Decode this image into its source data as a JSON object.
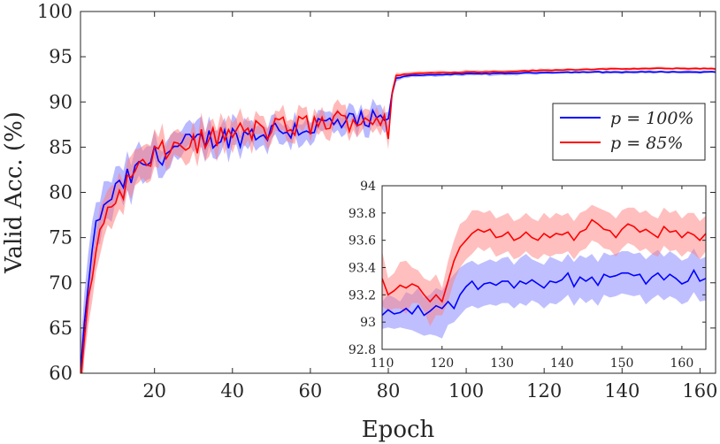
{
  "chart_data": [
    {
      "type": "line",
      "panel": "main",
      "xlabel": "Epoch",
      "ylabel": "Valid Acc. (%)",
      "xlim": [
        1,
        164
      ],
      "ylim": [
        60,
        100
      ],
      "xticks": [
        20,
        40,
        60,
        80,
        100,
        120,
        140,
        160
      ],
      "yticks": [
        60,
        65,
        70,
        75,
        80,
        85,
        90,
        95,
        100
      ],
      "grid": false,
      "legend_position": "right",
      "x_breakpoints": [
        1,
        3,
        5,
        8,
        12,
        16,
        20,
        25,
        30,
        35,
        40,
        45,
        50,
        55,
        60,
        65,
        70,
        75,
        79,
        80,
        81,
        82,
        85,
        90,
        100,
        110,
        120,
        130,
        140,
        150,
        160,
        164
      ],
      "series": [
        {
          "name": "p = 100%",
          "legend_label": "p = 100%",
          "color": "#0000ff",
          "band_color": "#8080ff",
          "mean": [
            60,
            70,
            76.5,
            79,
            81,
            82.5,
            84,
            84.8,
            85.5,
            86,
            86.2,
            86.5,
            86.8,
            87,
            87.2,
            87.5,
            87.6,
            87.8,
            87.8,
            87.5,
            91,
            92.6,
            92.9,
            93.0,
            93.1,
            93.15,
            93.25,
            93.3,
            93.3,
            93.33,
            93.3,
            93.3
          ],
          "band": [
            3,
            3,
            2.5,
            2,
            2,
            2,
            1.8,
            1.5,
            1.5,
            1.5,
            1.4,
            1.3,
            1.2,
            1.2,
            1.1,
            1.1,
            1.1,
            1.1,
            1.1,
            1.1,
            0.5,
            0.3,
            0.2,
            0.2,
            0.2,
            0.2,
            0.15,
            0.15,
            0.15,
            0.15,
            0.15,
            0.15
          ]
        },
        {
          "name": "p = 85%",
          "legend_label": "p = 85%",
          "color": "#ff0000",
          "band_color": "#ff8080",
          "mean": [
            59,
            68,
            74,
            78,
            80.5,
            82.5,
            84,
            85,
            85.5,
            86,
            86.5,
            86.8,
            87,
            87.3,
            87.5,
            87.8,
            88,
            88.2,
            88.3,
            86.5,
            91,
            92.9,
            93.1,
            93.2,
            93.3,
            93.35,
            93.5,
            93.6,
            93.65,
            93.7,
            93.7,
            93.65
          ],
          "band": [
            3,
            3,
            2.5,
            2,
            2,
            2,
            1.8,
            1.5,
            1.5,
            1.5,
            1.4,
            1.3,
            1.2,
            1.2,
            1.1,
            1.1,
            1.1,
            1.1,
            1.1,
            1.1,
            0.5,
            0.3,
            0.2,
            0.2,
            0.2,
            0.2,
            0.15,
            0.15,
            0.15,
            0.15,
            0.15,
            0.15
          ]
        }
      ]
    },
    {
      "type": "line",
      "panel": "inset",
      "xlim": [
        110,
        164
      ],
      "ylim": [
        92.8,
        94
      ],
      "xticks": [
        110,
        120,
        130,
        140,
        150,
        160
      ],
      "yticks": [
        92.8,
        93,
        93.2,
        93.4,
        93.6,
        93.8,
        94
      ],
      "grid": false,
      "series": [
        {
          "name": "p = 100%",
          "color": "#0000ff",
          "band_color": "#8080ff",
          "x": [
            110,
            111,
            112,
            113,
            114,
            115,
            116,
            117,
            118,
            119,
            120,
            121,
            122,
            123,
            124,
            125,
            126,
            127,
            128,
            129,
            130,
            131,
            132,
            133,
            134,
            135,
            136,
            137,
            138,
            139,
            140,
            141,
            142,
            143,
            144,
            145,
            146,
            147,
            148,
            149,
            150,
            151,
            152,
            153,
            154,
            155,
            156,
            157,
            158,
            159,
            160,
            161,
            162,
            163,
            164
          ],
          "mean": [
            93.05,
            93.09,
            93.06,
            93.07,
            93.1,
            93.06,
            93.12,
            93.05,
            93.08,
            93.12,
            93.1,
            93.15,
            93.1,
            93.2,
            93.26,
            93.3,
            93.24,
            93.28,
            93.29,
            93.27,
            93.3,
            93.3,
            93.25,
            93.3,
            93.28,
            93.31,
            93.28,
            93.25,
            93.3,
            93.29,
            93.31,
            93.36,
            93.26,
            93.33,
            93.3,
            93.33,
            93.27,
            93.35,
            93.33,
            93.34,
            93.36,
            93.36,
            93.34,
            93.35,
            93.28,
            93.33,
            93.36,
            93.31,
            93.35,
            93.32,
            93.28,
            93.3,
            93.38,
            93.3,
            93.32
          ],
          "upper": [
            93.15,
            93.2,
            93.18,
            93.15,
            93.22,
            93.2,
            93.25,
            93.18,
            93.2,
            93.25,
            93.23,
            93.3,
            93.35,
            93.4,
            93.43,
            93.45,
            93.42,
            93.44,
            93.46,
            93.44,
            93.47,
            93.48,
            93.42,
            93.47,
            93.5,
            93.46,
            93.44,
            93.42,
            93.48,
            93.46,
            93.44,
            93.5,
            93.44,
            93.49,
            93.47,
            93.5,
            93.44,
            93.51,
            93.49,
            93.5,
            93.52,
            93.52,
            93.5,
            93.51,
            93.46,
            93.5,
            93.53,
            93.48,
            93.52,
            93.49,
            93.45,
            93.47,
            93.54,
            93.46,
            93.48
          ],
          "lower": [
            92.95,
            92.96,
            92.95,
            92.96,
            92.95,
            92.94,
            92.92,
            92.9,
            92.91,
            92.9,
            92.88,
            92.98,
            93.0,
            93.05,
            93.1,
            93.12,
            93.1,
            93.12,
            93.13,
            93.12,
            93.14,
            93.14,
            93.1,
            93.14,
            93.12,
            93.16,
            93.14,
            93.1,
            93.14,
            93.13,
            93.16,
            93.2,
            93.12,
            93.18,
            93.14,
            93.17,
            93.12,
            93.2,
            93.18,
            93.19,
            93.21,
            93.2,
            93.19,
            93.2,
            93.13,
            93.17,
            93.2,
            93.16,
            93.19,
            93.17,
            93.13,
            93.15,
            93.22,
            93.15,
            93.16
          ]
        },
        {
          "name": "p = 85%",
          "color": "#ff0000",
          "band_color": "#ff8080",
          "x": [
            110,
            111,
            112,
            113,
            114,
            115,
            116,
            117,
            118,
            119,
            120,
            121,
            122,
            123,
            124,
            125,
            126,
            127,
            128,
            129,
            130,
            131,
            132,
            133,
            134,
            135,
            136,
            137,
            138,
            139,
            140,
            141,
            142,
            143,
            144,
            145,
            146,
            147,
            148,
            149,
            150,
            151,
            152,
            153,
            154,
            155,
            156,
            157,
            158,
            159,
            160,
            161,
            162,
            163,
            164
          ],
          "mean": [
            93.32,
            93.2,
            93.23,
            93.27,
            93.25,
            93.28,
            93.26,
            93.2,
            93.15,
            93.2,
            93.15,
            93.3,
            93.45,
            93.55,
            93.6,
            93.65,
            93.68,
            93.66,
            93.68,
            93.62,
            93.63,
            93.66,
            93.6,
            93.62,
            93.66,
            93.62,
            93.6,
            93.65,
            93.62,
            93.65,
            93.64,
            93.66,
            93.6,
            93.66,
            93.68,
            93.75,
            93.72,
            93.68,
            93.67,
            93.62,
            93.68,
            93.72,
            93.7,
            93.66,
            93.68,
            93.65,
            93.62,
            93.7,
            93.66,
            93.67,
            93.62,
            93.66,
            93.64,
            93.6,
            93.65
          ],
          "upper": [
            93.52,
            93.32,
            93.36,
            93.44,
            93.45,
            93.4,
            93.38,
            93.32,
            93.3,
            93.35,
            93.25,
            93.45,
            93.6,
            93.72,
            93.75,
            93.82,
            93.82,
            93.8,
            93.82,
            93.76,
            93.78,
            93.8,
            93.74,
            93.76,
            93.8,
            93.76,
            93.74,
            93.8,
            93.76,
            93.8,
            93.78,
            93.8,
            93.74,
            93.8,
            93.82,
            93.86,
            93.84,
            93.82,
            93.8,
            93.76,
            93.82,
            93.84,
            93.84,
            93.8,
            93.82,
            93.78,
            93.76,
            93.84,
            93.8,
            93.82,
            93.76,
            93.8,
            93.8,
            93.74,
            93.78
          ],
          "lower": [
            93.12,
            93.08,
            93.1,
            93.1,
            93.06,
            93.14,
            93.14,
            93.08,
            92.97,
            93.05,
            93.05,
            93.15,
            93.3,
            93.4,
            93.46,
            93.5,
            93.55,
            93.52,
            93.55,
            93.48,
            93.5,
            93.52,
            93.46,
            93.48,
            93.52,
            93.48,
            93.46,
            93.5,
            93.48,
            93.5,
            93.5,
            93.52,
            93.46,
            93.52,
            93.54,
            93.6,
            93.58,
            93.54,
            93.53,
            93.48,
            93.54,
            93.58,
            93.56,
            93.52,
            93.54,
            93.5,
            93.48,
            93.56,
            93.52,
            93.53,
            93.48,
            93.52,
            93.5,
            93.46,
            93.52
          ]
        }
      ]
    }
  ]
}
